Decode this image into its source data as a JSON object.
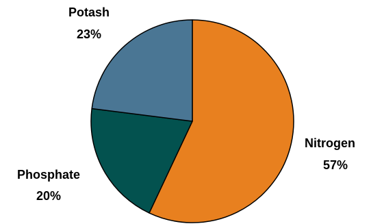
{
  "chart_data": {
    "type": "pie",
    "slices": [
      {
        "label": "Nitrogen",
        "value": 57,
        "value_label": "57%",
        "color": "#E8801F"
      },
      {
        "label": "Phosphate",
        "value": 20,
        "value_label": "20%",
        "color": "#03524F"
      },
      {
        "label": "Potash",
        "value": 23,
        "value_label": "23%",
        "color": "#4A7694"
      }
    ],
    "start": "12 o'clock",
    "direction": "clockwise",
    "legend": "none",
    "stroke_color": "#000000"
  }
}
